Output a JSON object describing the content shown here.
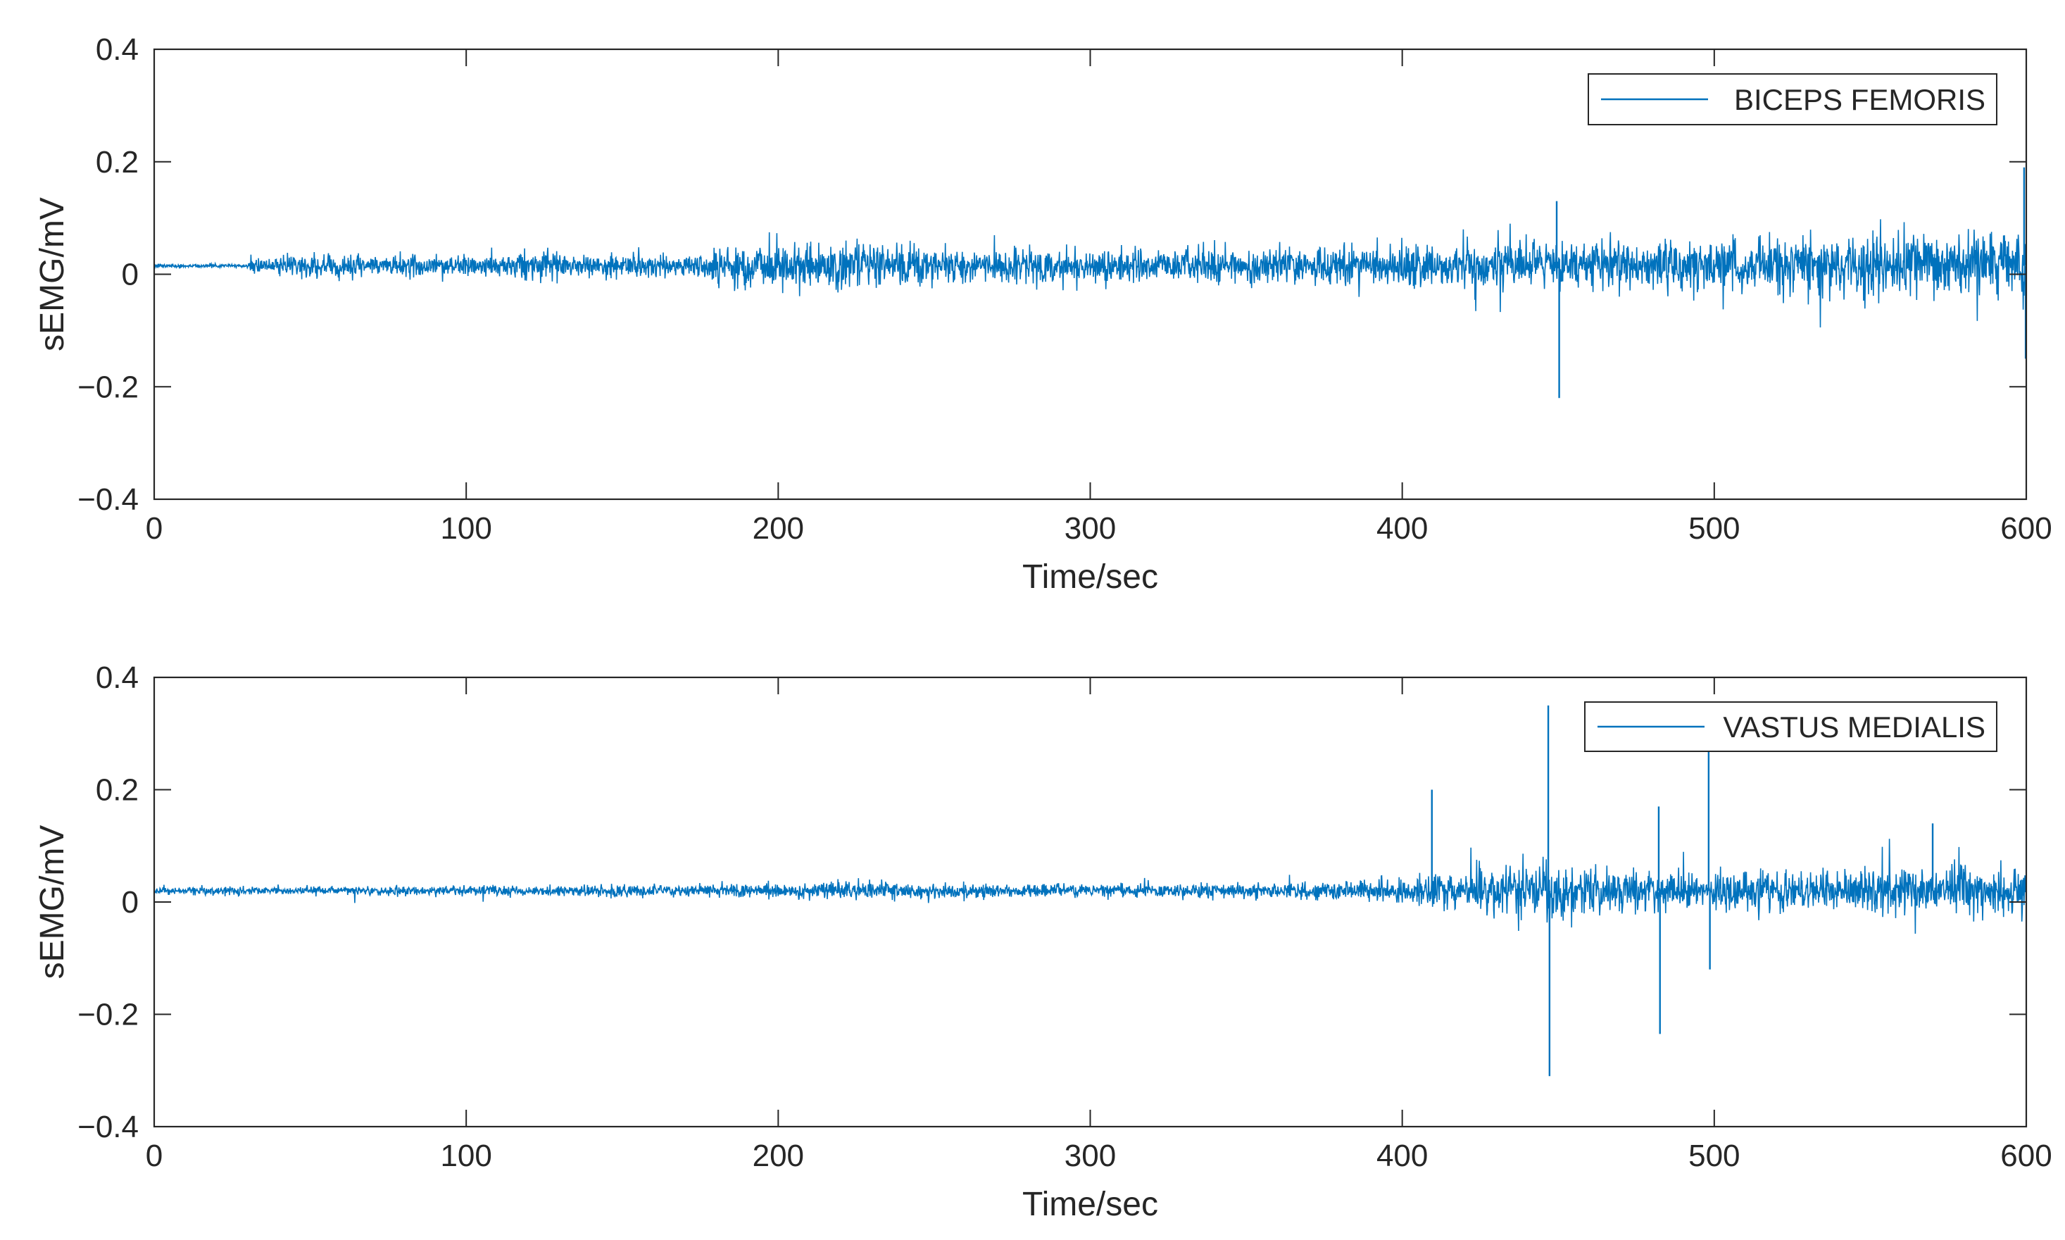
{
  "chart_data": [
    {
      "type": "line",
      "xlabel": "Time/sec",
      "ylabel": "sEMG/mV",
      "xlim": [
        0,
        600
      ],
      "ylim": [
        -0.4,
        0.4
      ],
      "x_ticks": [
        0,
        100,
        200,
        300,
        400,
        500,
        600
      ],
      "x_tick_labels": [
        "0",
        "100",
        "200",
        "300",
        "400",
        "500",
        "600"
      ],
      "y_ticks": [
        0.4,
        0.2,
        0,
        -0.2,
        -0.4
      ],
      "y_tick_labels": [
        "0.4",
        "0.2",
        "0",
        "−0.2",
        "−0.4"
      ],
      "grid": false,
      "legend_position": "top-right",
      "series": [
        {
          "name": "BICEPS FEMORIS",
          "color": "#0072BD",
          "baseline": 0.015,
          "envelope": {
            "t": [
              0,
              30,
              31,
              50,
              100,
              175,
              185,
              220,
              260,
              300,
              360,
              400,
              440,
              480,
              520,
              560,
              600
            ],
            "amplitude": [
              0.004,
              0.004,
              0.016,
              0.022,
              0.024,
              0.026,
              0.045,
              0.05,
              0.034,
              0.034,
              0.036,
              0.045,
              0.05,
              0.052,
              0.056,
              0.062,
              0.072
            ]
          },
          "spikes": [
            {
              "t": 449.5,
              "value": 0.13
            },
            {
              "t": 450.3,
              "value": -0.22
            },
            {
              "t": 599.3,
              "value": 0.19
            },
            {
              "t": 599.8,
              "value": -0.15
            }
          ]
        }
      ]
    },
    {
      "type": "line",
      "xlabel": "Time/sec",
      "ylabel": "sEMG/mV",
      "xlim": [
        0,
        600
      ],
      "ylim": [
        -0.4,
        0.4
      ],
      "x_ticks": [
        0,
        100,
        200,
        300,
        400,
        500,
        600
      ],
      "x_tick_labels": [
        "0",
        "100",
        "200",
        "300",
        "400",
        "500",
        "600"
      ],
      "y_ticks": [
        0.4,
        0.2,
        0,
        -0.2,
        -0.4
      ],
      "y_tick_labels": [
        "0.4",
        "0.2",
        "0",
        "−0.2",
        "−0.4"
      ],
      "grid": false,
      "legend_position": "top-right",
      "series": [
        {
          "name": "VASTUS MEDIALIS",
          "color": "#0072BD",
          "baseline": 0.02,
          "envelope": {
            "t": [
              0,
              20,
              180,
              220,
              300,
              360,
              400,
              420,
              430,
              445,
              480,
              520,
              560,
              600
            ],
            "amplitude": [
              0.007,
              0.008,
              0.012,
              0.018,
              0.014,
              0.016,
              0.025,
              0.04,
              0.055,
              0.05,
              0.042,
              0.04,
              0.045,
              0.05
            ]
          },
          "spikes": [
            {
              "t": 409.5,
              "value": 0.2
            },
            {
              "t": 446.8,
              "value": 0.35
            },
            {
              "t": 447.2,
              "value": -0.31
            },
            {
              "t": 482.2,
              "value": 0.17
            },
            {
              "t": 482.6,
              "value": -0.235
            },
            {
              "t": 498.2,
              "value": 0.27
            },
            {
              "t": 498.6,
              "value": -0.12
            },
            {
              "t": 570.0,
              "value": 0.14
            }
          ]
        }
      ]
    }
  ]
}
